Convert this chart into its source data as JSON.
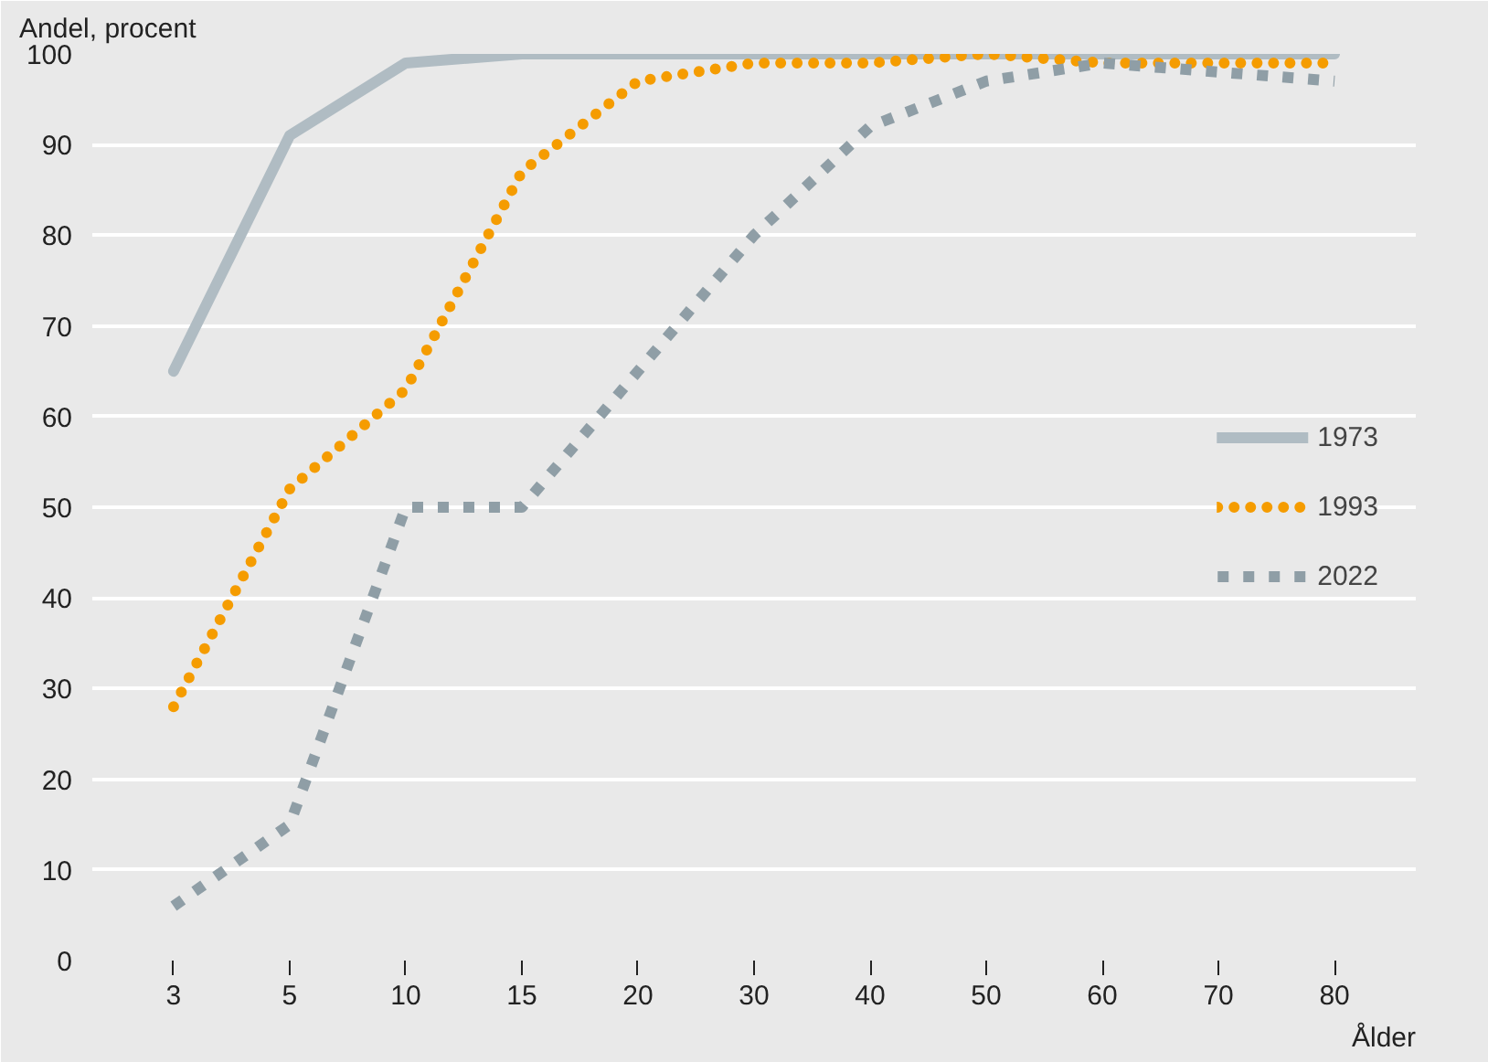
{
  "chart_data": {
    "type": "line",
    "xlabel": "Ålder",
    "ylabel": "Andel, procent",
    "categories": [
      "3",
      "5",
      "10",
      "15",
      "20",
      "30",
      "40",
      "50",
      "60",
      "70",
      "80"
    ],
    "series": [
      {
        "name": "1973",
        "color": "#b0bcc3",
        "line_style": "solid",
        "values": [
          65,
          91,
          99,
          100,
          100,
          100,
          100,
          100,
          100,
          100,
          100
        ]
      },
      {
        "name": "1993",
        "color": "#f59c00",
        "line_style": "dotted",
        "values": [
          28,
          52,
          63,
          87,
          97,
          99,
          99,
          100,
          99,
          99,
          99
        ]
      },
      {
        "name": "2022",
        "color": "#8f9ea6",
        "line_style": "dashed",
        "values": [
          6,
          15,
          50,
          50,
          65,
          80,
          92,
          97,
          99,
          98,
          97
        ]
      }
    ],
    "ylim": [
      0,
      100
    ],
    "yticks": [
      0,
      10,
      20,
      30,
      40,
      50,
      60,
      70,
      80,
      90,
      100
    ],
    "grid": "y",
    "legend": "right",
    "marker": "none"
  }
}
